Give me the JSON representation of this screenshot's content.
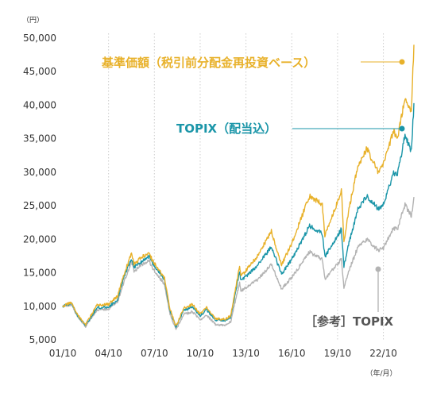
{
  "chart_data": {
    "type": "line",
    "y_unit": "（円）",
    "x_unit": "（年/月）",
    "ylim": [
      5000,
      50000
    ],
    "xlim": [
      "2001-10",
      "2024-10"
    ],
    "y_ticks": [
      5000,
      10000,
      15000,
      20000,
      25000,
      30000,
      35000,
      40000,
      45000,
      50000
    ],
    "y_tick_labels": [
      "5,000",
      "10,000",
      "15,000",
      "20,000",
      "25,000",
      "30,000",
      "35,000",
      "40,000",
      "45,000",
      "50,000"
    ],
    "x_ticks": [
      "2001-10",
      "2004-10",
      "2007-10",
      "2010-10",
      "2013-10",
      "2016-10",
      "2019-10",
      "2022-10"
    ],
    "x_tick_labels": [
      "01/10",
      "04/10",
      "07/10",
      "10/10",
      "13/10",
      "16/10",
      "19/10",
      "22/10"
    ],
    "grid": "vertical dotted",
    "colors": {
      "nav": "#e8b12a",
      "topix_div": "#1a95a8",
      "topix": "#b3b3b3"
    },
    "series": [
      {
        "key": "nav",
        "name": "基準価額（税引前分配金再投資ベース）",
        "x": [
          "2001-10",
          "2002-05",
          "2002-10",
          "2003-04",
          "2004-01",
          "2004-10",
          "2005-05",
          "2005-10",
          "2006-04",
          "2006-06",
          "2007-02",
          "2007-06",
          "2007-08",
          "2008-06",
          "2008-10",
          "2009-03",
          "2009-09",
          "2010-04",
          "2010-10",
          "2011-03",
          "2011-10",
          "2012-06",
          "2012-10",
          "2013-05",
          "2013-06",
          "2014-06",
          "2015-06",
          "2015-10",
          "2016-02",
          "2016-10",
          "2017-12",
          "2018-10",
          "2018-12",
          "2019-10",
          "2020-01",
          "2020-03",
          "2020-07",
          "2021-02",
          "2021-09",
          "2022-06",
          "2022-10",
          "2023-06",
          "2023-09",
          "2024-03",
          "2024-08",
          "2024-10"
        ],
        "y": [
          10000,
          10600,
          8600,
          7300,
          10200,
          10300,
          11500,
          14700,
          17900,
          16300,
          17600,
          18000,
          17000,
          14200,
          9800,
          7000,
          9700,
          10300,
          8800,
          9800,
          8100,
          8100,
          8600,
          15900,
          14400,
          17200,
          21200,
          18600,
          16200,
          19400,
          26500,
          25200,
          20600,
          25600,
          27400,
          19500,
          24600,
          31000,
          33500,
          29900,
          31200,
          36200,
          35000,
          41000,
          39000,
          49000
        ]
      },
      {
        "key": "topix_div",
        "name": "TOPIX（配当込）",
        "x": [
          "2001-10",
          "2002-05",
          "2002-10",
          "2003-04",
          "2004-01",
          "2004-10",
          "2005-05",
          "2005-10",
          "2006-04",
          "2006-06",
          "2007-02",
          "2007-06",
          "2007-08",
          "2008-06",
          "2008-10",
          "2009-03",
          "2009-09",
          "2010-04",
          "2010-10",
          "2011-03",
          "2011-10",
          "2012-06",
          "2012-10",
          "2013-05",
          "2013-06",
          "2014-06",
          "2015-06",
          "2015-10",
          "2016-02",
          "2016-10",
          "2017-12",
          "2018-10",
          "2018-12",
          "2019-10",
          "2020-01",
          "2020-03",
          "2020-07",
          "2021-02",
          "2021-09",
          "2022-06",
          "2022-10",
          "2023-06",
          "2023-09",
          "2024-03",
          "2024-08",
          "2024-10"
        ],
        "y": [
          10000,
          10400,
          8500,
          7200,
          9800,
          9900,
          11000,
          14300,
          17200,
          15800,
          17000,
          17500,
          16600,
          13900,
          9600,
          6900,
          9400,
          9900,
          8600,
          9500,
          8000,
          7900,
          8400,
          15200,
          13800,
          15800,
          18900,
          16800,
          14800,
          17000,
          22000,
          20800,
          17400,
          20500,
          21500,
          16000,
          19500,
          24500,
          26500,
          24500,
          25200,
          29800,
          29500,
          35500,
          33000,
          40300
        ]
      },
      {
        "key": "topix",
        "name": "［参考］TOPIX",
        "x": [
          "2001-10",
          "2002-05",
          "2002-10",
          "2003-04",
          "2004-01",
          "2004-10",
          "2005-05",
          "2005-10",
          "2006-04",
          "2006-06",
          "2007-02",
          "2007-06",
          "2007-08",
          "2008-06",
          "2008-10",
          "2009-03",
          "2009-09",
          "2010-04",
          "2010-10",
          "2011-03",
          "2011-10",
          "2012-06",
          "2012-10",
          "2013-05",
          "2013-06",
          "2014-06",
          "2015-06",
          "2015-10",
          "2016-02",
          "2016-10",
          "2017-12",
          "2018-10",
          "2018-12",
          "2019-10",
          "2020-01",
          "2020-03",
          "2020-07",
          "2021-02",
          "2021-09",
          "2022-06",
          "2022-10",
          "2023-06",
          "2023-09",
          "2024-03",
          "2024-08",
          "2024-10"
        ],
        "y": [
          10000,
          10300,
          8300,
          7000,
          9500,
          9600,
          10600,
          13600,
          16700,
          15300,
          16400,
          16800,
          15900,
          13200,
          9100,
          6500,
          8800,
          9200,
          8000,
          8700,
          7300,
          7200,
          7700,
          13500,
          12300,
          13800,
          16200,
          14400,
          12600,
          14300,
          18100,
          17000,
          14100,
          16300,
          17100,
          12800,
          15400,
          18800,
          20000,
          18300,
          18700,
          21700,
          21500,
          25200,
          23400,
          26300
        ]
      }
    ],
    "annotations": [
      {
        "series": "nav",
        "text": "基準価額（税引前分配金再投資ベース）"
      },
      {
        "series": "topix_div",
        "text": "TOPIX（配当込）"
      },
      {
        "series": "topix",
        "text": "［参考］TOPIX"
      }
    ]
  }
}
